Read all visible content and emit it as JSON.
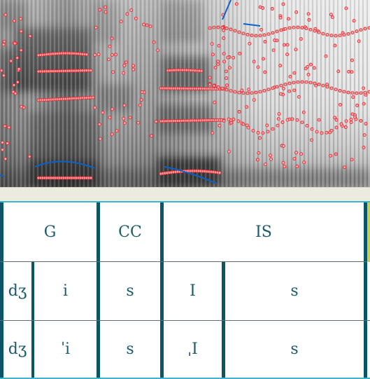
{
  "window": {
    "title": ""
  },
  "spectrogram": {
    "formant_color": "#e8212a",
    "pitch_color": "#0a63c9",
    "background_color": "#ffffff"
  },
  "tiers": {
    "tier1": {
      "cells": [
        "G",
        "CC",
        "IS"
      ]
    },
    "tier2": {
      "cells": [
        "dʒ",
        "i",
        "s",
        "I",
        "s"
      ]
    },
    "tier3": {
      "cells": [
        "dʒ",
        "ˈi",
        "s",
        "ˌI",
        "s"
      ]
    }
  },
  "colors": {
    "boundary": "#0b5566",
    "text": "#1a5a6a",
    "tier_border": "#3fb4cf",
    "gutter": "#ecebdf",
    "accent": "#c9cf55"
  }
}
